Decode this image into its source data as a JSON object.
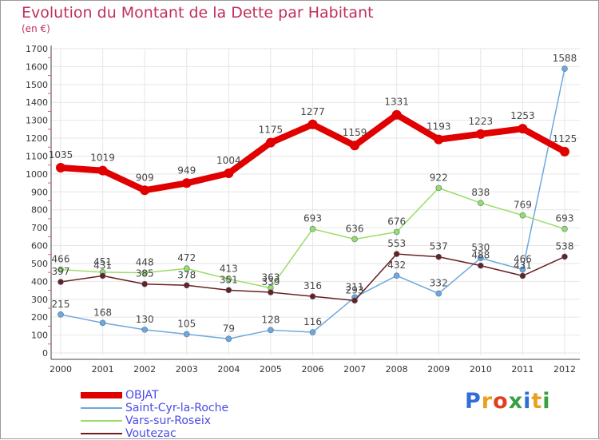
{
  "header": {
    "title": "Evolution du Montant de la Dette par Habitant",
    "subtitle": "(en €)"
  },
  "logo": {
    "text": "Proxiti",
    "letter_colors": [
      "#2f6fd6",
      "#e8a020",
      "#e04020",
      "#3aa040",
      "#2f6fd6",
      "#e8a020",
      "#3aa040"
    ]
  },
  "chart_data": {
    "type": "line",
    "title": "Evolution du Montant de la Dette par Habitant",
    "ylabel": "(en €)",
    "xlabel": "",
    "ylim": [
      0,
      1700
    ],
    "yticks": [
      0,
      100,
      200,
      300,
      400,
      500,
      600,
      700,
      800,
      900,
      1000,
      1100,
      1200,
      1300,
      1400,
      1500,
      1600,
      1700
    ],
    "x": [
      "2000",
      "2001",
      "2002",
      "2003",
      "2004",
      "2005",
      "2006",
      "2007",
      "2008",
      "2009",
      "2010",
      "2011",
      "2012"
    ],
    "grid": true,
    "legend_position": "bottom-left",
    "series": [
      {
        "name": "OBJAT",
        "color": "#e00000",
        "values": [
          1035,
          1019,
          909,
          949,
          1004,
          1175,
          1277,
          1159,
          1331,
          1193,
          1223,
          1253,
          1125
        ]
      },
      {
        "name": "Saint-Cyr-la-Roche",
        "color": "#6fa8dc",
        "values": [
          215,
          168,
          130,
          105,
          79,
          128,
          116,
          311,
          432,
          332,
          530,
          466,
          1588
        ]
      },
      {
        "name": "Vars-sur-Roseix",
        "color": "#99dd66",
        "values": [
          466,
          451,
          448,
          472,
          413,
          363,
          693,
          636,
          676,
          922,
          838,
          769,
          693
        ]
      },
      {
        "name": "Voutezac",
        "color": "#6b1f1f",
        "values": [
          397,
          431,
          385,
          378,
          351,
          339,
          316,
          293,
          553,
          537,
          488,
          431,
          538
        ]
      }
    ]
  }
}
